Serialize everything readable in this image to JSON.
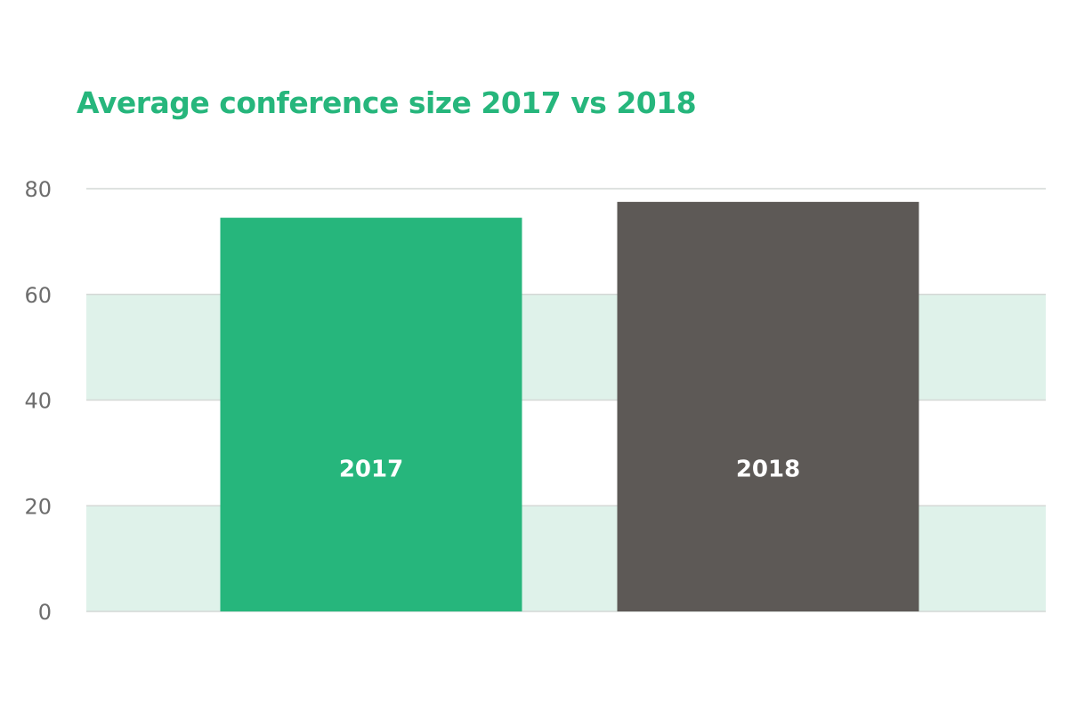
{
  "colors": {
    "title": "#26b67c",
    "band": "#dff2ea",
    "grid": "#d4d8d6",
    "label": "#ffffff"
  },
  "chart_data": {
    "type": "bar",
    "title": "Average conference size 2017 vs 2018",
    "xlabel": "",
    "ylabel": "",
    "categories": [
      "2017",
      "2018"
    ],
    "values": [
      74.5,
      77.5
    ],
    "bar_colors": [
      "#26b67c",
      "#5d5956"
    ],
    "ylim": [
      0,
      80
    ],
    "yticks": [
      0,
      20,
      40,
      60,
      80
    ],
    "ytick_labels": [
      "0",
      "20",
      "40",
      "60",
      "80"
    ],
    "alternating_bands": true,
    "legend": "none",
    "bar_label_value": 27
  }
}
